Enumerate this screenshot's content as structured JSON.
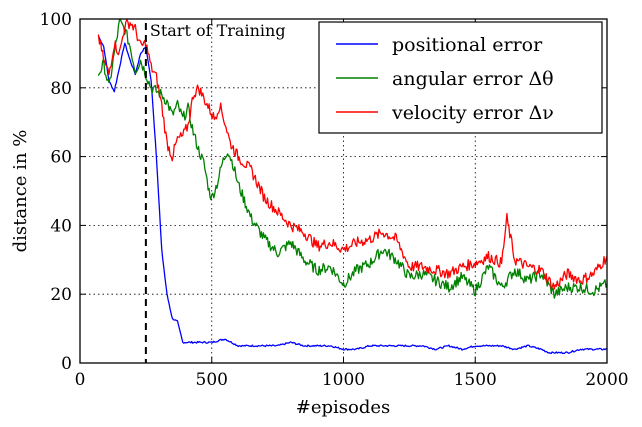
{
  "chart_data": {
    "type": "line",
    "xlabel": "#episodes",
    "ylabel": "distance in %",
    "xlim": [
      0,
      2000
    ],
    "ylim": [
      0,
      100
    ],
    "x_ticks": [
      "0",
      "500",
      "1000",
      "1500",
      "2000"
    ],
    "y_ticks": [
      "0",
      "20",
      "40",
      "60",
      "80",
      "100"
    ],
    "grid": true,
    "legend_position": "top-right",
    "annotation": {
      "text": "Start of Training",
      "x": 250
    },
    "series": [
      {
        "name": "positional error",
        "color": "#0000ff",
        "x": [
          70,
          90,
          110,
          130,
          150,
          170,
          190,
          210,
          230,
          250,
          270,
          290,
          310,
          330,
          350,
          370,
          390,
          420,
          450,
          500,
          550,
          600,
          650,
          700,
          750,
          800,
          850,
          900,
          950,
          1000,
          1050,
          1100,
          1150,
          1200,
          1250,
          1300,
          1350,
          1400,
          1450,
          1500,
          1550,
          1600,
          1650,
          1700,
          1750,
          1780,
          1800,
          1850,
          1900,
          1950,
          2000
        ],
        "values": [
          95,
          92,
          82,
          79,
          86,
          93,
          88,
          84,
          90,
          92,
          82,
          60,
          33,
          20,
          13,
          12,
          6,
          6,
          6,
          6,
          7,
          5,
          5,
          5,
          5,
          6,
          5,
          5,
          5,
          4,
          4,
          5,
          5,
          5,
          5,
          5,
          4,
          5,
          4,
          5,
          5,
          5,
          4,
          5,
          4,
          3,
          3,
          3,
          4,
          4,
          4
        ]
      },
      {
        "name": "angular error Δθ",
        "color": "#008000",
        "x": [
          70,
          90,
          110,
          130,
          150,
          170,
          190,
          210,
          230,
          250,
          270,
          290,
          310,
          330,
          350,
          370,
          390,
          410,
          430,
          450,
          470,
          490,
          500,
          520,
          540,
          560,
          580,
          600,
          620,
          650,
          700,
          750,
          800,
          850,
          900,
          950,
          1000,
          1050,
          1100,
          1150,
          1200,
          1250,
          1300,
          1350,
          1400,
          1450,
          1500,
          1550,
          1600,
          1650,
          1700,
          1750,
          1800,
          1850,
          1900,
          1950,
          2000
        ],
        "values": [
          84,
          87,
          80,
          90,
          99,
          97,
          92,
          85,
          88,
          84,
          80,
          79,
          78,
          76,
          72,
          75,
          71,
          74,
          67,
          62,
          58,
          50,
          48,
          52,
          58,
          62,
          58,
          52,
          48,
          42,
          36,
          32,
          35,
          30,
          27,
          28,
          23,
          27,
          29,
          33,
          30,
          25,
          26,
          24,
          22,
          25,
          21,
          28,
          22,
          27,
          24,
          26,
          20,
          22,
          22,
          21,
          23
        ]
      },
      {
        "name": "velocity error Δν",
        "color": "#ff0000",
        "x": [
          70,
          90,
          110,
          130,
          150,
          170,
          190,
          210,
          230,
          250,
          270,
          290,
          310,
          330,
          350,
          370,
          390,
          410,
          430,
          450,
          470,
          490,
          510,
          530,
          550,
          570,
          600,
          650,
          700,
          750,
          800,
          850,
          900,
          950,
          1000,
          1050,
          1100,
          1150,
          1200,
          1250,
          1300,
          1350,
          1400,
          1450,
          1500,
          1550,
          1600,
          1620,
          1650,
          1700,
          1750,
          1800,
          1850,
          1900,
          1950,
          2000
        ],
        "values": [
          95,
          88,
          84,
          93,
          90,
          98,
          99,
          97,
          92,
          93,
          86,
          83,
          75,
          64,
          60,
          65,
          66,
          69,
          78,
          80,
          77,
          74,
          71,
          75,
          70,
          64,
          60,
          56,
          48,
          44,
          40,
          38,
          34,
          35,
          33,
          35,
          36,
          38,
          36,
          28,
          28,
          27,
          26,
          28,
          29,
          31,
          29,
          42,
          30,
          28,
          27,
          22,
          26,
          24,
          26,
          31
        ]
      }
    ]
  }
}
